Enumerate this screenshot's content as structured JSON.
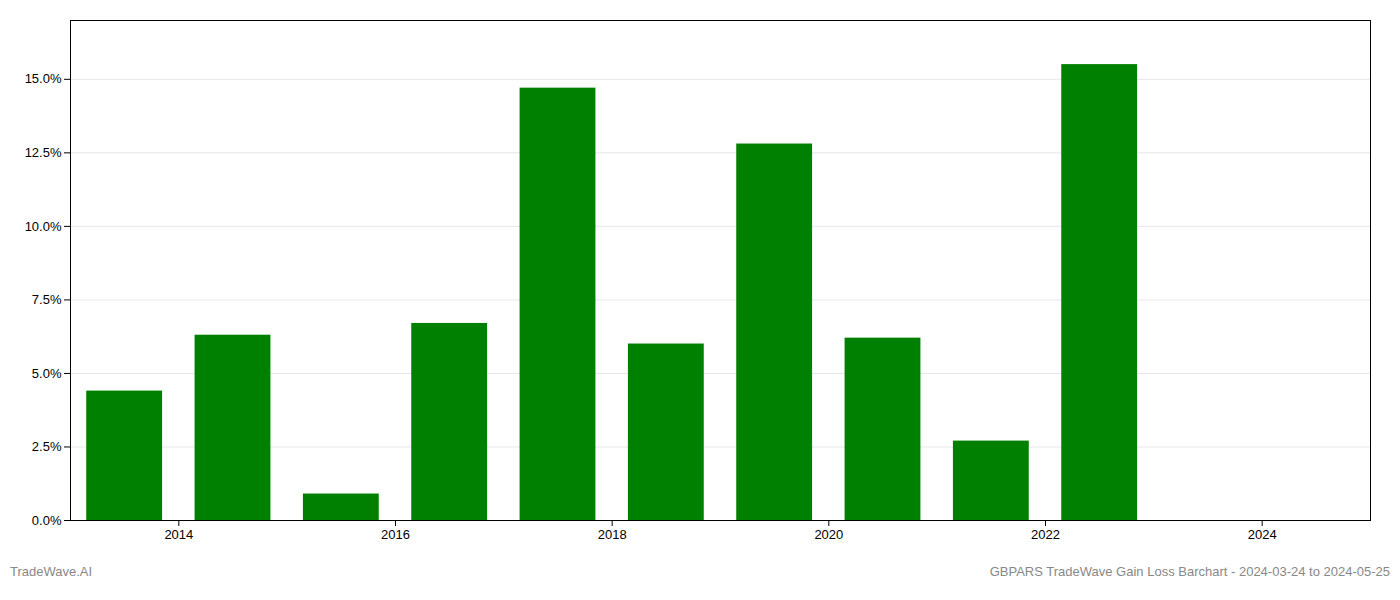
{
  "chart_data": {
    "type": "bar",
    "x": [
      2013.5,
      2014.5,
      2015.5,
      2016.5,
      2017.5,
      2018.5,
      2019.5,
      2020.5,
      2021.5,
      2022.5,
      2023.5
    ],
    "values": [
      0.044,
      0.063,
      0.009,
      0.067,
      0.147,
      0.06,
      0.128,
      0.062,
      0.027,
      0.155,
      0.0
    ],
    "color": "#008000",
    "xlim": [
      2013.0,
      2025.0
    ],
    "xticks": [
      2014,
      2016,
      2018,
      2020,
      2022,
      2024
    ],
    "ylim": [
      0,
      0.17
    ],
    "yticks": [
      {
        "value": 0.0,
        "label": "0.0%"
      },
      {
        "value": 0.025,
        "label": "2.5%"
      },
      {
        "value": 0.05,
        "label": "5.0%"
      },
      {
        "value": 0.075,
        "label": "7.5%"
      },
      {
        "value": 0.1,
        "label": "10.0%"
      },
      {
        "value": 0.125,
        "label": "12.5%"
      },
      {
        "value": 0.15,
        "label": "15.0%"
      }
    ],
    "grid": true,
    "annotations": [
      "TradeWave.AI",
      "GBPARS TradeWave Gain Loss Barchart - 2024-03-24 to 2024-05-25"
    ]
  }
}
